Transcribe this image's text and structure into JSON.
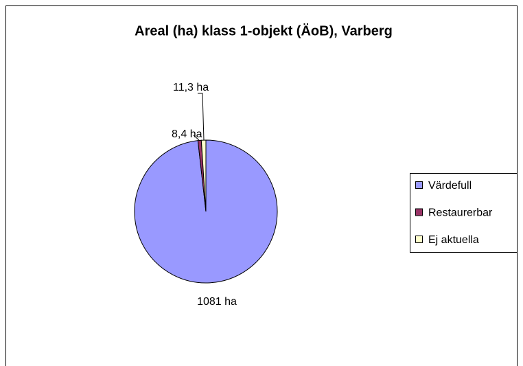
{
  "chart_data": {
    "type": "pie",
    "title": "Areal (ha) klass 1-objekt (ÄoB), Varberg",
    "categories": [
      "Värdefull",
      "Restaurerbar",
      "Ej aktuella"
    ],
    "values": [
      1081,
      8.4,
      11.3
    ],
    "value_labels": [
      "1081 ha",
      "8,4 ha",
      "11,3 ha"
    ],
    "colors": [
      "#9999ff",
      "#993366",
      "#ffffcc"
    ],
    "legend": "right"
  }
}
